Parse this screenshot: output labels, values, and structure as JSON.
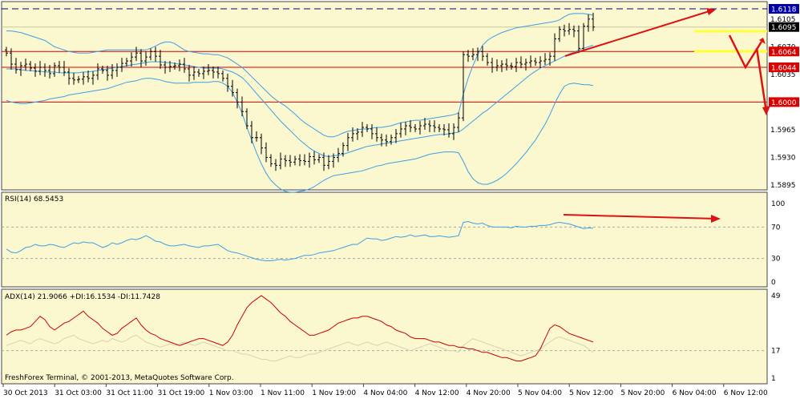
{
  "chart_data": [
    {
      "type": "candlestick",
      "panel": "price",
      "ylim": [
        1.5885,
        1.613
      ],
      "price_ticks": [
        "1.6105",
        "1.6070",
        "1.6035",
        "1.5965",
        "1.5930",
        "1.5895"
      ],
      "tagged_levels": [
        {
          "value": 1.6118,
          "label": "1.6118",
          "bg": "#0000aa",
          "fg": "#ffffff",
          "line": "dashed",
          "line_color": "#000080"
        },
        {
          "value": 1.6095,
          "label": "1.6095",
          "bg": "#000000",
          "fg": "#ffffff",
          "line": "solid",
          "line_color": "#dddd00"
        },
        {
          "value": 1.6064,
          "label": "1.6064",
          "bg": "#dd0000",
          "fg": "#ffffff",
          "line": "solid",
          "line_color": "#dd0000"
        },
        {
          "value": 1.6044,
          "label": "1.6044",
          "bg": "#dd0000",
          "fg": "#ffffff",
          "line": "solid",
          "line_color": "#dd0000"
        },
        {
          "value": 1.6,
          "label": "1.6000",
          "bg": "#dd0000",
          "fg": "#ffffff",
          "line": "solid",
          "line_color": "#dd0000"
        }
      ],
      "close": [
        1.6062,
        1.6048,
        1.6041,
        1.6046,
        1.6048,
        1.6043,
        1.6039,
        1.6044,
        1.604,
        1.6036,
        1.6046,
        1.6044,
        1.6038,
        1.603,
        1.6028,
        1.6029,
        1.6032,
        1.603,
        1.6034,
        1.6042,
        1.604,
        1.6034,
        1.604,
        1.6044,
        1.6049,
        1.6052,
        1.6057,
        1.6062,
        1.6052,
        1.6057,
        1.6064,
        1.6058,
        1.6047,
        1.6044,
        1.6045,
        1.6046,
        1.6048,
        1.6042,
        1.6034,
        1.6038,
        1.6036,
        1.6039,
        1.604,
        1.6038,
        1.6036,
        1.603,
        1.602,
        1.6012,
        1.6,
        1.5988,
        1.597,
        1.5955,
        1.5955,
        1.5942,
        1.593,
        1.5922,
        1.592,
        1.5928,
        1.5926,
        1.5924,
        1.5928,
        1.5926,
        1.5925,
        1.5931,
        1.5927,
        1.593,
        1.592,
        1.5925,
        1.593,
        1.5935,
        1.5945,
        1.5955,
        1.596,
        1.5962,
        1.5968,
        1.5966,
        1.596,
        1.5955,
        1.5952,
        1.595,
        1.5955,
        1.596,
        1.5966,
        1.597,
        1.5968,
        1.5966,
        1.597,
        1.5972,
        1.597,
        1.5968,
        1.5966,
        1.5965,
        1.596,
        1.5968,
        1.598,
        1.606,
        1.6058,
        1.606,
        1.6064,
        1.6058,
        1.605,
        1.6044,
        1.6046,
        1.6048,
        1.6046,
        1.6045,
        1.605,
        1.6048,
        1.605,
        1.6052,
        1.605,
        1.6052,
        1.6054,
        1.6058,
        1.608,
        1.6092,
        1.609,
        1.6092,
        1.609,
        1.6068,
        1.6096,
        1.6105,
        1.6095
      ],
      "bollinger": {
        "upper": [
          1.609,
          1.609,
          1.6089,
          1.6088,
          1.6086,
          1.6084,
          1.6082,
          1.608,
          1.6078,
          1.6074,
          1.607,
          1.6068,
          1.6066,
          1.6064,
          1.6063,
          1.6062,
          1.6062,
          1.6062,
          1.6063,
          1.6064,
          1.6065,
          1.6066,
          1.6066,
          1.6066,
          1.6066,
          1.6066,
          1.6066,
          1.6066,
          1.6066,
          1.6066,
          1.6068,
          1.6071,
          1.6074,
          1.6076,
          1.6076,
          1.6074,
          1.607,
          1.6066,
          1.6064,
          1.6063,
          1.6062,
          1.6061,
          1.6061,
          1.606,
          1.606,
          1.6058,
          1.6056,
          1.6052,
          1.6048,
          1.6044,
          1.6038,
          1.6032,
          1.6026,
          1.602,
          1.6014,
          1.6008,
          1.6003,
          1.5999,
          1.5995,
          1.599,
          1.5985,
          1.5979,
          1.5974,
          1.597,
          1.5966,
          1.5962,
          1.5958,
          1.5956,
          1.5956,
          1.5958,
          1.5961,
          1.5963,
          1.5964,
          1.5965,
          1.5966,
          1.5966,
          1.5967,
          1.5968,
          1.5968,
          1.5969,
          1.597,
          1.5972,
          1.5974,
          1.5975,
          1.5976,
          1.5977,
          1.5977,
          1.5978,
          1.5979,
          1.598,
          1.5981,
          1.5982,
          1.5983,
          1.5984,
          1.5986,
          1.601,
          1.603,
          1.6046,
          1.606,
          1.6072,
          1.6078,
          1.6082,
          1.6085,
          1.6088,
          1.609,
          1.6092,
          1.6094,
          1.6095,
          1.6096,
          1.6097,
          1.6098,
          1.6099,
          1.61,
          1.6101,
          1.6102,
          1.6104,
          1.6108,
          1.6111,
          1.6112,
          1.6112,
          1.6112,
          1.6111,
          1.611
        ],
        "middle": [
          1.6042,
          1.6042,
          1.6042,
          1.6041,
          1.604,
          1.604,
          1.6039,
          1.6039,
          1.6038,
          1.6038,
          1.6038,
          1.6037,
          1.6037,
          1.6037,
          1.6037,
          1.6037,
          1.6038,
          1.6038,
          1.6039,
          1.604,
          1.6041,
          1.6042,
          1.6043,
          1.6044,
          1.6045,
          1.6046,
          1.6047,
          1.6048,
          1.6049,
          1.605,
          1.6051,
          1.6051,
          1.6051,
          1.605,
          1.605,
          1.6049,
          1.6048,
          1.6047,
          1.6046,
          1.6045,
          1.6044,
          1.6043,
          1.6043,
          1.6043,
          1.6043,
          1.6042,
          1.604,
          1.6038,
          1.6035,
          1.6031,
          1.6025,
          1.6018,
          1.6011,
          1.6004,
          1.5997,
          1.599,
          1.5983,
          1.5976,
          1.597,
          1.5964,
          1.5958,
          1.5952,
          1.5947,
          1.5942,
          1.5938,
          1.5935,
          1.5932,
          1.5931,
          1.5932,
          1.5933,
          1.5934,
          1.5936,
          1.5938,
          1.594,
          1.5942,
          1.5944,
          1.5945,
          1.5946,
          1.5947,
          1.5948,
          1.5949,
          1.595,
          1.5951,
          1.5952,
          1.5953,
          1.5954,
          1.5955,
          1.5956,
          1.5957,
          1.5958,
          1.5959,
          1.5959,
          1.596,
          1.5961,
          1.5962,
          1.5966,
          1.5971,
          1.5976,
          1.5981,
          1.5986,
          1.599,
          1.5995,
          1.6,
          1.6005,
          1.601,
          1.6015,
          1.602,
          1.6025,
          1.603,
          1.6035,
          1.6039,
          1.6043,
          1.6046,
          1.6049,
          1.6052,
          1.6055,
          1.6058,
          1.6061,
          1.6063,
          1.6066,
          1.6068,
          1.607,
          1.6072
        ],
        "lower": [
          1.6002,
          1.6,
          1.5999,
          1.5998,
          1.5998,
          1.5999,
          1.6,
          1.6001,
          1.6002,
          1.6004,
          1.6005,
          1.6006,
          1.6007,
          1.6009,
          1.601,
          1.6011,
          1.6012,
          1.6013,
          1.6014,
          1.6015,
          1.6016,
          1.6017,
          1.6019,
          1.6021,
          1.6023,
          1.6025,
          1.6026,
          1.6027,
          1.6029,
          1.603,
          1.603,
          1.6029,
          1.6028,
          1.6026,
          1.6025,
          1.6024,
          1.6024,
          1.6024,
          1.6024,
          1.6025,
          1.6025,
          1.6025,
          1.6025,
          1.6026,
          1.6026,
          1.6024,
          1.602,
          1.6012,
          1.6,
          1.5986,
          1.5968,
          1.5952,
          1.5936,
          1.5922,
          1.591,
          1.5901,
          1.5895,
          1.589,
          1.5887,
          1.5886,
          1.5886,
          1.5887,
          1.5888,
          1.589,
          1.5893,
          1.5897,
          1.5901,
          1.5904,
          1.5907,
          1.5908,
          1.5909,
          1.591,
          1.5911,
          1.5912,
          1.5913,
          1.5915,
          1.5917,
          1.5919,
          1.592,
          1.5922,
          1.5923,
          1.5924,
          1.5925,
          1.5926,
          1.5927,
          1.5928,
          1.593,
          1.5932,
          1.5934,
          1.5935,
          1.5936,
          1.5937,
          1.5937,
          1.5937,
          1.5936,
          1.5925,
          1.5912,
          1.5903,
          1.5898,
          1.5896,
          1.5896,
          1.5898,
          1.5901,
          1.5905,
          1.591,
          1.5916,
          1.5922,
          1.5929,
          1.5936,
          1.5944,
          1.5952,
          1.5962,
          1.5972,
          1.5984,
          1.5998,
          1.601,
          1.602,
          1.6023,
          1.6024,
          1.6023,
          1.6022,
          1.6022,
          1.6021
        ]
      }
    },
    {
      "type": "line",
      "panel": "rsi",
      "label": "RSI(14) 68.5453",
      "ylim": [
        0,
        100
      ],
      "levels": [
        30,
        70
      ],
      "ticks": [
        "100",
        "70",
        "30",
        "0"
      ],
      "values": [
        42,
        38,
        37,
        40,
        44,
        45,
        48,
        46,
        46,
        48,
        47,
        45,
        44,
        47,
        50,
        49,
        51,
        50,
        50,
        47,
        44,
        46,
        50,
        48,
        50,
        53,
        55,
        54,
        56,
        59,
        56,
        52,
        51,
        48,
        46,
        46,
        47,
        48,
        46,
        45,
        44,
        46,
        46,
        47,
        48,
        44,
        40,
        38,
        37,
        35,
        33,
        31,
        29,
        28,
        27,
        27,
        28,
        29,
        28,
        29,
        30,
        32,
        34,
        34,
        35,
        37,
        38,
        39,
        40,
        42,
        44,
        46,
        48,
        48,
        52,
        56,
        55,
        55,
        53,
        54,
        56,
        58,
        57,
        58,
        60,
        58,
        59,
        60,
        58,
        58,
        59,
        58,
        57,
        58,
        59,
        76,
        77,
        75,
        74,
        75,
        72,
        70,
        70,
        70,
        70,
        69,
        71,
        70,
        70,
        71,
        71,
        72,
        72,
        73,
        75,
        76,
        75,
        74,
        72,
        70,
        68,
        69,
        68.5
      ]
    },
    {
      "type": "line",
      "panel": "adx",
      "label": "ADX(14) 21.9066 +DI:16.1534 -DI:11.7428",
      "ylim": [
        1,
        49
      ],
      "ticks": [
        "49",
        "17",
        "1"
      ],
      "series": [
        {
          "name": "ADX",
          "color": "#cc0000",
          "values": [
            26,
            28,
            29,
            29,
            30,
            31,
            34,
            37,
            35,
            31,
            29,
            31,
            33,
            34,
            36,
            38,
            40,
            37,
            35,
            33,
            30,
            28,
            26,
            27,
            30,
            32,
            34,
            36,
            32,
            29,
            27,
            26,
            24,
            23,
            22,
            21,
            20,
            21,
            22,
            23,
            24,
            24,
            23,
            22,
            21,
            20,
            22,
            26,
            32,
            37,
            42,
            45,
            47,
            49,
            47,
            45,
            42,
            39,
            37,
            34,
            32,
            30,
            28,
            26,
            26,
            27,
            28,
            29,
            31,
            33,
            34,
            35,
            36,
            36,
            37,
            37,
            36,
            35,
            34,
            32,
            31,
            29,
            28,
            27,
            25,
            24,
            24,
            24,
            23,
            22,
            22,
            21,
            20,
            20,
            19,
            19,
            18,
            18,
            17,
            16,
            16,
            15,
            14,
            13,
            13,
            12,
            11,
            11,
            12,
            13,
            14,
            18,
            24,
            30,
            32,
            31,
            29,
            27,
            26,
            25,
            24,
            23,
            22
          ]
        },
        {
          "name": "+DI",
          "color": "#d8d2b4",
          "values": [
            20,
            21,
            22,
            23,
            22,
            21,
            23,
            24,
            23,
            22,
            21,
            22,
            24,
            25,
            26,
            24,
            23,
            22,
            21,
            22,
            23,
            22,
            24,
            23,
            22,
            23,
            25,
            26,
            24,
            22,
            21,
            20,
            19,
            20,
            21,
            20,
            21,
            22,
            21,
            20,
            21,
            22,
            21,
            20,
            19,
            18,
            17,
            17,
            16,
            15,
            15,
            14,
            13,
            12,
            12,
            11,
            11,
            12,
            13,
            14,
            13,
            13,
            14,
            15,
            15,
            16,
            17,
            18,
            19,
            20,
            21,
            22,
            21,
            20,
            21,
            22,
            21,
            20,
            21,
            22,
            21,
            20,
            19,
            18,
            17,
            18,
            19,
            20,
            21,
            20,
            19,
            18,
            17,
            17,
            16,
            20,
            22,
            24,
            23,
            22,
            21,
            20,
            19,
            18,
            17,
            16,
            15,
            14,
            15,
            16,
            17,
            18,
            20,
            22,
            24,
            25,
            24,
            23,
            22,
            21,
            20,
            18,
            16
          ]
        }
      ]
    }
  ],
  "time_labels": [
    "30 Oct 2013",
    "31 Oct 03:00",
    "31 Oct 11:00",
    "31 Oct 19:00",
    "1 Nov 03:00",
    "1 Nov 11:00",
    "1 Nov 19:00",
    "4 Nov 04:00",
    "4 Nov 12:00",
    "4 Nov 20:00",
    "5 Nov 04:00",
    "5 Nov 12:00",
    "5 Nov 20:00",
    "6 Nov 04:00",
    "6 Nov 12:00"
  ],
  "copyright": "FreshForex Terminal, © 2001-2013, MetaQuotes Software Corp.",
  "colors": {
    "background": "#fbf8cf",
    "candle": "#000000",
    "bands": "#3aa0e8",
    "rsi": "#3aa0e8",
    "annotation": "#dd1111",
    "yellow": "#ffff33"
  }
}
